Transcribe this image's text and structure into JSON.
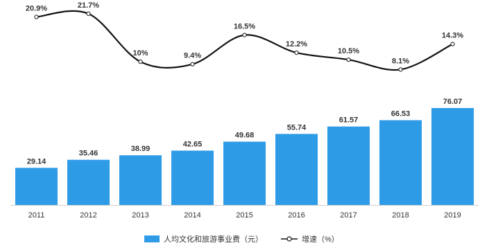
{
  "chart_data": {
    "type": "bar",
    "categories": [
      "2011",
      "2012",
      "2013",
      "2014",
      "2015",
      "2016",
      "2017",
      "2018",
      "2019"
    ],
    "series": [
      {
        "name": "人均文化和旅游事业费（元）",
        "type": "bar",
        "values": [
          29.14,
          35.46,
          38.99,
          42.65,
          49.68,
          55.74,
          61.57,
          66.53,
          76.07
        ],
        "labels": [
          "29.14",
          "35.46",
          "38.99",
          "42.65",
          "49.68",
          "55.74",
          "61.57",
          "66.53",
          "76.07"
        ]
      },
      {
        "name": "增速（%）",
        "type": "line",
        "values": [
          20.9,
          21.7,
          10.0,
          9.4,
          16.5,
          12.2,
          10.5,
          8.1,
          14.3
        ],
        "labels": [
          "20.9%",
          "21.7%",
          "10%",
          "9.4%",
          "16.5%",
          "12.2%",
          "10.5%",
          "8.1%",
          "14.3%"
        ]
      }
    ],
    "bar_ylim": [
      0,
      80
    ],
    "line_ylim": [
      8,
      22
    ],
    "legend_position": "bottom",
    "grid": false
  },
  "legend": {
    "bar_label": "人均文化和旅游事业费（元）",
    "line_label": "增速（%）"
  },
  "colors": {
    "bar": "#2e9be6",
    "line": "#111111",
    "axis": "#cfcfcf",
    "text": "#333333"
  }
}
